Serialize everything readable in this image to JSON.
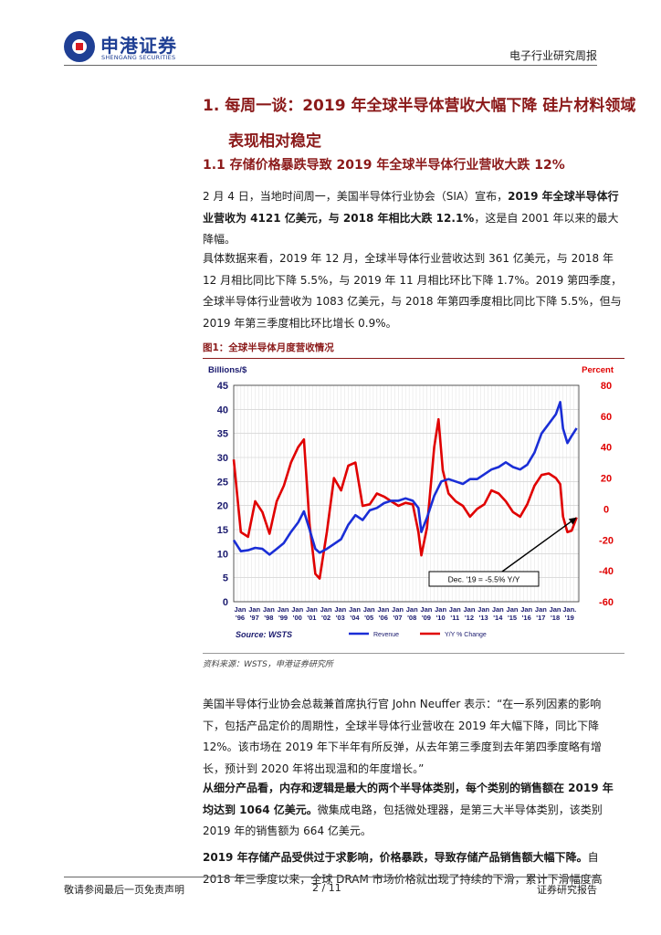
{
  "header": {
    "logo_cn": "申港证券",
    "logo_en": "SHENGANG SECURITIES",
    "report_type": "电子行业研究周报"
  },
  "headings": {
    "h1_line1": "1. 每周一谈：2019 年全球半导体营收大幅下降  硅片材料领域",
    "h1_line2": "表现相对稳定",
    "h11": "1.1 存储价格暴跌导致 2019 年全球半导体行业营收大跌 12%"
  },
  "paragraphs": {
    "p1_a": "2 月 4 日，当地时间周一，美国半导体行业协会（SIA）宣布，",
    "p1_b": "2019 年全球半导体行业营收为 4121 亿美元，与 2018 年相比大跌 12.1%",
    "p1_c": "，这是自 2001 年以来的最大降幅。",
    "p2": "具体数据来看，2019 年 12 月，全球半导体行业营收达到 361 亿美元，与 2018 年 12 月相比同比下降 5.5%，与 2019 年 11 月相比环比下降 1.7%。2019 第四季度，全球半导体行业营收为 1083 亿美元，与 2018 年第四季度相比同比下降 5.5%，但与 2019 年第三季度相比环比增长 0.9%。",
    "p3": "美国半导体行业协会总裁兼首席执行官 John Neuffer 表示：“在一系列因素的影响下，包括产品定价的周期性，全球半导体行业营收在 2019 年大幅下降，同比下降 12%。该市场在 2019 年下半年有所反弹，从去年第三季度到去年第四季度略有增长，预计到 2020 年将出现温和的年度增长。”",
    "p4_a": "从细分产品看，内存和逻辑是最大的两个半导体类别，每个类别的销售额在 2019 年均达到 1064 亿美元。",
    "p4_b": "微集成电路，包括微处理器，是第三大半导体类别，该类别 2019 年的销售额为 664 亿美元。",
    "p5_a": "2019 年存储产品受供过于求影响，价格暴跌，导致存储产品销售额大幅下降。",
    "p5_b": "自 2018 年三季度以来，全球 DRAM 市场价格就出现了持续的下滑，累计下滑幅度高"
  },
  "figure": {
    "title": "图1：全球半导体月度营收情况",
    "source": "资料来源：WSTS，申港证券研究所"
  },
  "footer": {
    "left": "敬请参阅最后一页免责声明",
    "page": "2 / 11",
    "right": "证券研究报告"
  },
  "chart_data": {
    "type": "line",
    "left_axis_label": "Billions/$",
    "right_axis_label": "Percent",
    "left_ylim": [
      0,
      45
    ],
    "right_ylim": [
      -60,
      80
    ],
    "left_ticks": [
      0,
      5,
      10,
      15,
      20,
      25,
      30,
      35,
      40,
      45
    ],
    "right_ticks": [
      -60,
      -40,
      -20,
      0,
      20,
      40,
      60,
      80
    ],
    "x_ticks": [
      "Jan '96",
      "Jan '97",
      "Jan '98",
      "Jan '99",
      "Jan '00",
      "Jan '01",
      "Jan '02",
      "Jan '03",
      "Jan '04",
      "Jan '05",
      "Jan '06",
      "Jan '07",
      "Jan '08",
      "Jan '09",
      "Jan '10",
      "Jan '11",
      "Jan '12",
      "Jan '13",
      "Jan '14",
      "Jan '15",
      "Jan '16",
      "Jan '17",
      "Jan '18",
      "Jan '19"
    ],
    "x_tick_top": [
      "Jan",
      "Jan",
      "Jan",
      "Jan",
      "Jan",
      "Jan",
      "Jan",
      "Jan",
      "Jan",
      "Jan",
      "Jan",
      "Jan",
      "Jan",
      "Jan",
      "Jan",
      "Jan",
      "Jan",
      "Jan",
      "Jan",
      "Jan",
      "Jan",
      "Jan",
      "Jan",
      "Jan."
    ],
    "x_tick_bottom": [
      "'96",
      "'97",
      "'98",
      "'99",
      "'00",
      "'01",
      "'02",
      "'03",
      "'04",
      "'05",
      "'06",
      "'07",
      "'08",
      "'09",
      "'10",
      "'11",
      "'12",
      "'13",
      "'14",
      "'15",
      "'16",
      "'17",
      "'18",
      "'19"
    ],
    "source_label": "Source: WSTS",
    "annotation": "Dec. '19 = -5.5% Y/Y",
    "grid": true,
    "series": [
      {
        "name": "Revenue",
        "axis": "left",
        "color": "#1a2ed6",
        "x": [
          1996.0,
          1996.5,
          1997.0,
          1997.5,
          1998.0,
          1998.5,
          1999.0,
          1999.5,
          2000.0,
          2000.5,
          2000.9,
          2001.3,
          2001.7,
          2002.0,
          2002.5,
          2003.0,
          2003.5,
          2004.0,
          2004.5,
          2005.0,
          2005.5,
          2006.0,
          2006.5,
          2007.0,
          2007.5,
          2008.0,
          2008.5,
          2008.9,
          2009.1,
          2009.5,
          2010.0,
          2010.5,
          2011.0,
          2011.5,
          2012.0,
          2012.5,
          2013.0,
          2013.5,
          2014.0,
          2014.5,
          2015.0,
          2015.5,
          2016.0,
          2016.5,
          2017.0,
          2017.5,
          2018.0,
          2018.5,
          2018.8,
          2019.0,
          2019.3,
          2019.6,
          2019.95
        ],
        "y": [
          12.8,
          10.5,
          10.7,
          11.2,
          11.0,
          9.8,
          11.0,
          12.2,
          14.5,
          16.5,
          18.8,
          15.0,
          11.0,
          10.2,
          11.0,
          12.0,
          13.0,
          16.0,
          18.0,
          17.0,
          19.0,
          19.5,
          20.5,
          21.0,
          21.0,
          21.5,
          21.0,
          19.5,
          14.5,
          17.5,
          22.0,
          25.0,
          25.5,
          25.0,
          24.5,
          25.5,
          25.5,
          26.5,
          27.5,
          28.0,
          29.0,
          28.0,
          27.5,
          28.5,
          31.0,
          35.0,
          37.0,
          39.0,
          41.5,
          36.0,
          33.0,
          34.5,
          36.1
        ]
      },
      {
        "name": "Y/Y % Change",
        "axis": "right",
        "color": "#e00000",
        "x": [
          1996.0,
          1996.5,
          1997.0,
          1997.5,
          1998.0,
          1998.5,
          1999.0,
          1999.5,
          2000.0,
          2000.5,
          2000.9,
          2001.3,
          2001.7,
          2002.0,
          2002.5,
          2003.0,
          2003.5,
          2004.0,
          2004.5,
          2005.0,
          2005.5,
          2006.0,
          2006.5,
          2007.0,
          2007.5,
          2008.0,
          2008.5,
          2008.9,
          2009.1,
          2009.5,
          2010.0,
          2010.3,
          2010.6,
          2011.0,
          2011.5,
          2012.0,
          2012.5,
          2013.0,
          2013.5,
          2014.0,
          2014.5,
          2015.0,
          2015.5,
          2016.0,
          2016.5,
          2017.0,
          2017.5,
          2018.0,
          2018.5,
          2018.8,
          2019.0,
          2019.3,
          2019.6,
          2019.95
        ],
        "y": [
          32.0,
          -15.0,
          -18.0,
          5.0,
          -2.0,
          -16.0,
          5.0,
          15.0,
          30.0,
          40.0,
          45.0,
          -10.0,
          -42.0,
          -45.0,
          -15.0,
          20.0,
          12.0,
          28.0,
          30.0,
          2.0,
          3.0,
          10.0,
          8.0,
          5.0,
          2.0,
          4.0,
          3.0,
          -15.0,
          -30.0,
          -12.0,
          40.0,
          58.0,
          25.0,
          10.0,
          5.0,
          2.0,
          -5.0,
          0.0,
          3.0,
          12.0,
          10.0,
          5.0,
          -2.0,
          -5.0,
          3.0,
          15.0,
          22.0,
          23.0,
          20.0,
          16.0,
          -5.0,
          -15.0,
          -14.0,
          -5.5
        ]
      }
    ]
  }
}
